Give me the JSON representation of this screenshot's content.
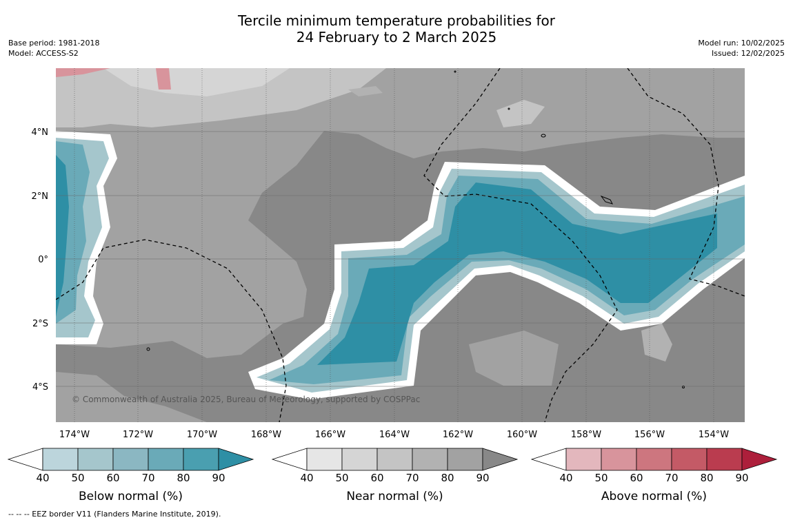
{
  "title_line1": "Tercile minimum temperature probabilities for",
  "title_line2": "24 February to 2 March 2025",
  "base_period": "Base period: 1981-2018",
  "model": "Model: ACCESS-S2",
  "model_run": "Model run: 10/02/2025",
  "issued": "Issued: 12/02/2025",
  "lat_labels": [
    "4°N",
    "2°N",
    "0°",
    "2°S",
    "4°S"
  ],
  "lon_labels": [
    "174°W",
    "172°W",
    "170°W",
    "168°W",
    "166°W",
    "164°W",
    "162°W",
    "160°W",
    "158°W",
    "156°W",
    "154°W"
  ],
  "copyright": "© Commonwealth of Australia 2025, Bureau of Meteorology, supported by COSPPac",
  "colorbars": [
    {
      "label": "Below normal (%)",
      "ticks": [
        "40",
        "50",
        "60",
        "70",
        "80",
        "90"
      ],
      "colors": [
        "#ffffff",
        "#bcd5dc",
        "#a5c6cc",
        "#8bb7c2",
        "#6aaab8",
        "#4a9fb0",
        "#2e8fa5"
      ]
    },
    {
      "label": "Near normal (%)",
      "ticks": [
        "40",
        "50",
        "60",
        "70",
        "80",
        "90"
      ],
      "colors": [
        "#ffffff",
        "#e6e6e6",
        "#d5d5d5",
        "#c4c4c4",
        "#b2b2b2",
        "#a2a2a2",
        "#888888"
      ]
    },
    {
      "label": "Above normal (%)",
      "ticks": [
        "40",
        "50",
        "60",
        "70",
        "80",
        "90"
      ],
      "colors": [
        "#ffffff",
        "#e3b7bd",
        "#d8949c",
        "#cd767f",
        "#c45a66",
        "#ba3c4f",
        "#ad1f3b"
      ]
    }
  ],
  "footnote": "--  --  -- EEZ border V11 (Flanders Marine Institute, 2019)."
}
